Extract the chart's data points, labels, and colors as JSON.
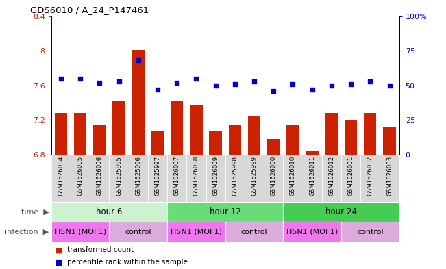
{
  "title": "GDS6010 / A_24_P147461",
  "samples": [
    "GSM1626004",
    "GSM1626005",
    "GSM1626006",
    "GSM1625995",
    "GSM1625996",
    "GSM1625997",
    "GSM1626007",
    "GSM1626008",
    "GSM1626009",
    "GSM1625998",
    "GSM1625999",
    "GSM1626000",
    "GSM1626010",
    "GSM1626011",
    "GSM1626012",
    "GSM1626001",
    "GSM1626002",
    "GSM1626003"
  ],
  "bar_values": [
    7.28,
    7.28,
    7.14,
    7.42,
    8.01,
    7.08,
    7.42,
    7.38,
    7.08,
    7.14,
    7.25,
    6.98,
    7.14,
    6.84,
    7.28,
    7.2,
    7.28,
    7.12
  ],
  "dot_values": [
    55,
    55,
    52,
    53,
    68,
    47,
    52,
    55,
    50,
    51,
    53,
    46,
    51,
    47,
    50,
    51,
    53,
    50
  ],
  "bar_color": "#cc2200",
  "dot_color": "#0000cc",
  "ylim_left": [
    6.8,
    8.4
  ],
  "ylim_right": [
    0,
    100
  ],
  "yticks_left": [
    6.8,
    7.2,
    7.6,
    8.0,
    8.4
  ],
  "ytick_labels_left": [
    "6.8",
    "7.2",
    "7.6",
    "8",
    "8.4"
  ],
  "yticks_right": [
    0,
    25,
    50,
    75,
    100
  ],
  "ytick_labels_right": [
    "0",
    "25",
    "50",
    "75",
    "100%"
  ],
  "hlines": [
    7.2,
    7.6,
    8.0
  ],
  "time_groups": [
    {
      "label": "hour 6",
      "start": 0,
      "end": 6,
      "color": "#ccf2d0"
    },
    {
      "label": "hour 12",
      "start": 6,
      "end": 12,
      "color": "#66dd77"
    },
    {
      "label": "hour 24",
      "start": 12,
      "end": 18,
      "color": "#44cc55"
    }
  ],
  "infection_groups": [
    {
      "label": "H5N1 (MOI 1)",
      "start": 0,
      "end": 3,
      "color": "#ee77ee"
    },
    {
      "label": "control",
      "start": 3,
      "end": 6,
      "color": "#ddaadd"
    },
    {
      "label": "H5N1 (MOI 1)",
      "start": 6,
      "end": 9,
      "color": "#ee77ee"
    },
    {
      "label": "control",
      "start": 9,
      "end": 12,
      "color": "#ddaadd"
    },
    {
      "label": "H5N1 (MOI 1)",
      "start": 12,
      "end": 15,
      "color": "#ee77ee"
    },
    {
      "label": "control",
      "start": 15,
      "end": 18,
      "color": "#ddaadd"
    }
  ],
  "legend_items": [
    {
      "label": "transformed count",
      "color": "#cc2200",
      "marker": "s"
    },
    {
      "label": "percentile rank within the sample",
      "color": "#0000cc",
      "marker": "s"
    }
  ],
  "bar_width": 0.65,
  "tick_label_color_left": "#cc2200",
  "tick_label_color_right": "#0000cc"
}
